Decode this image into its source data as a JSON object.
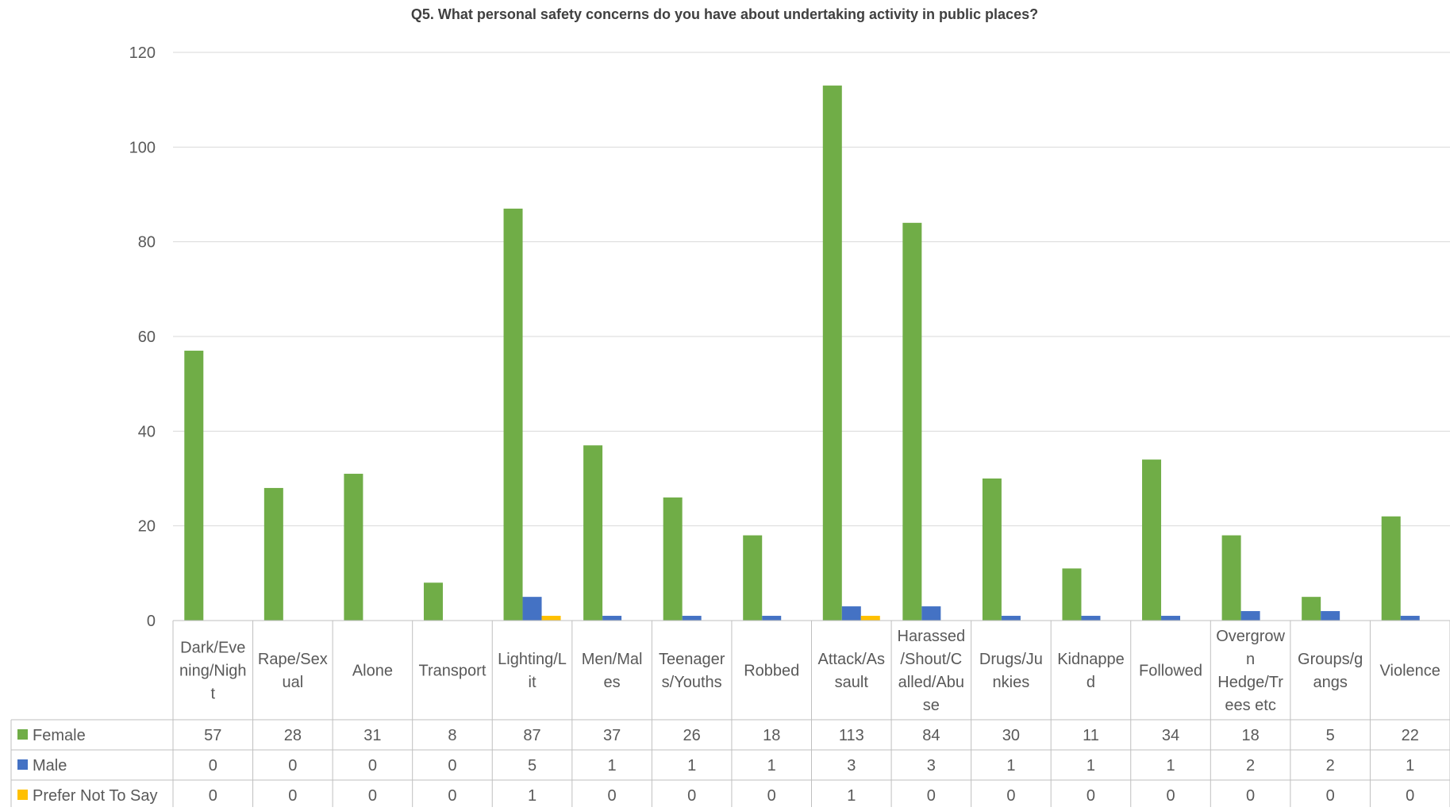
{
  "chart_data": {
    "type": "bar",
    "title": "Q5. What personal safety concerns do you have about undertaking activity in public places?",
    "categories": [
      "Dark/Evening/Night",
      "Rape/Sexual",
      "Alone",
      "Transport",
      "Lighting/Lit",
      "Men/Males",
      "Teenagers/Youths",
      "Robbed",
      "Attack/Assault",
      "Harassed/Shout/Called/Abuse",
      "Drugs/Junkies",
      "Kidnapped",
      "Followed",
      "Overgrown Hedge/Trees etc",
      "Groups/gangs",
      "Violence"
    ],
    "category_lines": [
      [
        "Dark/Eve",
        "ning/Nigh",
        "t"
      ],
      [
        "Rape/Sex",
        "ual"
      ],
      [
        "Alone"
      ],
      [
        "Transport"
      ],
      [
        "Lighting/L",
        "it"
      ],
      [
        "Men/Mal",
        "es"
      ],
      [
        "Teenager",
        "s/Youths"
      ],
      [
        "Robbed"
      ],
      [
        "Attack/As",
        "sault"
      ],
      [
        "Harassed",
        "/Shout/C",
        "alled/Abu",
        "se"
      ],
      [
        "Drugs/Ju",
        "nkies"
      ],
      [
        "Kidnappe",
        "d"
      ],
      [
        "Followed"
      ],
      [
        "Overgrow",
        "n",
        "Hedge/Tr",
        "ees etc"
      ],
      [
        "Groups/g",
        "angs"
      ],
      [
        "Violence"
      ]
    ],
    "series": [
      {
        "name": "Female",
        "color": "#70ad47",
        "values": [
          57,
          28,
          31,
          8,
          87,
          37,
          26,
          18,
          113,
          84,
          30,
          11,
          34,
          18,
          5,
          22
        ]
      },
      {
        "name": "Male",
        "color": "#4472c4",
        "values": [
          0,
          0,
          0,
          0,
          5,
          1,
          1,
          1,
          3,
          3,
          1,
          1,
          1,
          2,
          2,
          1
        ]
      },
      {
        "name": "Prefer Not To Say",
        "color": "#ffc000",
        "values": [
          0,
          0,
          0,
          0,
          1,
          0,
          0,
          0,
          1,
          0,
          0,
          0,
          0,
          0,
          0,
          0
        ]
      }
    ],
    "ylim": [
      0,
      120
    ],
    "yticks": [
      0,
      20,
      40,
      60,
      80,
      100,
      120
    ],
    "grid": true,
    "legend": "data-table"
  }
}
